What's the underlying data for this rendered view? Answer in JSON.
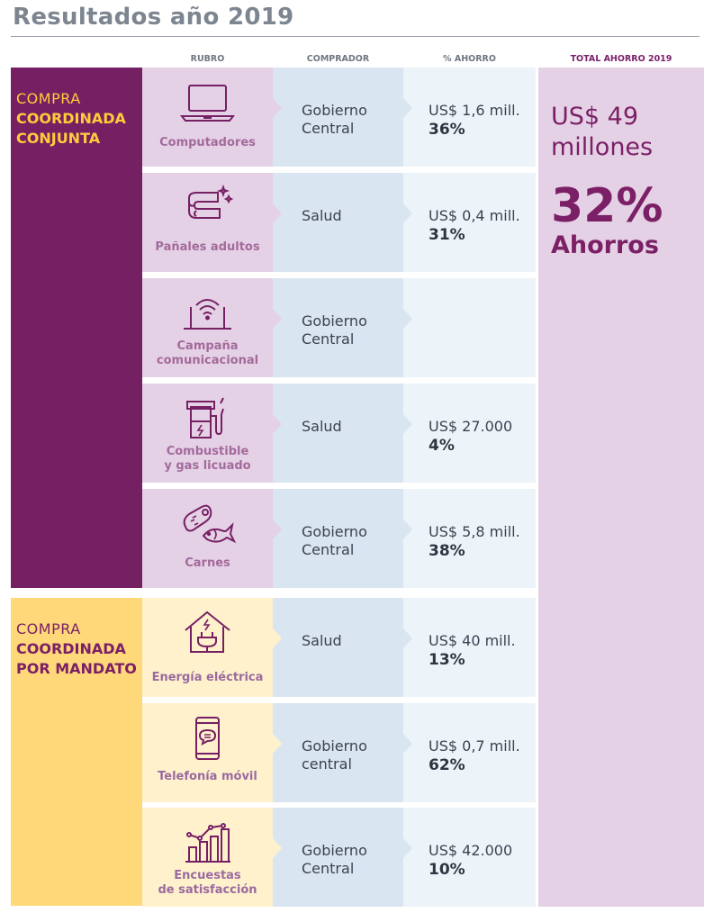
{
  "title": "Resultados año 2019",
  "headers": {
    "rubro": "RUBRO",
    "comprador": "COMPRADOR",
    "ahorro": "% AHORRO",
    "total": "TOTAL AHORRO 2019"
  },
  "groups": [
    {
      "line1": "COMPRA",
      "line2": "COORDINADA",
      "line3": "CONJUNTA"
    },
    {
      "line1": "COMPRA",
      "line2": "COORDINADA",
      "line3": "POR MANDATO"
    }
  ],
  "rows": [
    {
      "icon": "laptop-icon",
      "rubro": [
        "Computadores"
      ],
      "comprador": [
        "Gobierno",
        "Central"
      ],
      "amount": "US$ 1,6 mill.",
      "pct": "36%"
    },
    {
      "icon": "diapers-icon",
      "rubro": [
        "Pañales adultos"
      ],
      "comprador": [
        "Salud"
      ],
      "amount": "US$ 0,4 mill.",
      "pct": "31%"
    },
    {
      "icon": "wifi-screen-icon",
      "rubro": [
        "Campaña",
        "comunicacional"
      ],
      "comprador": [
        "Gobierno",
        "Central"
      ],
      "amount": "",
      "pct": ""
    },
    {
      "icon": "fuel-pump-icon",
      "rubro": [
        "Combustible",
        "y gas licuado"
      ],
      "comprador": [
        "Salud"
      ],
      "amount": "US$ 27.000",
      "pct": "4%"
    },
    {
      "icon": "meat-fish-icon",
      "rubro": [
        "Carnes"
      ],
      "comprador": [
        "Gobierno",
        "Central"
      ],
      "amount": "US$ 5,8 mill.",
      "pct": "38%"
    },
    {
      "icon": "house-plug-icon",
      "rubro": [
        "Energía eléctrica"
      ],
      "comprador": [
        "Salud"
      ],
      "amount": "US$ 40 mill.",
      "pct": "13%"
    },
    {
      "icon": "smartphone-icon",
      "rubro": [
        "Telefonía móvil"
      ],
      "comprador": [
        "Gobierno",
        "central"
      ],
      "amount": "US$ 0,7 mill.",
      "pct": "62%"
    },
    {
      "icon": "bar-chart-icon",
      "rubro": [
        "Encuestas",
        "de satisfacción"
      ],
      "comprador": [
        "Gobierno",
        "Central"
      ],
      "amount": "US$ 42.000",
      "pct": "10%"
    }
  ],
  "total": {
    "amount_line1": "US$ 49",
    "amount_line2": "millones",
    "pct": "32%",
    "label": "Ahorros"
  },
  "colors": {
    "conjunta": "#762064",
    "mandato": "#ffd87a",
    "accent_yellow": "#ffcb3a",
    "purple_text": "#7b2066"
  }
}
